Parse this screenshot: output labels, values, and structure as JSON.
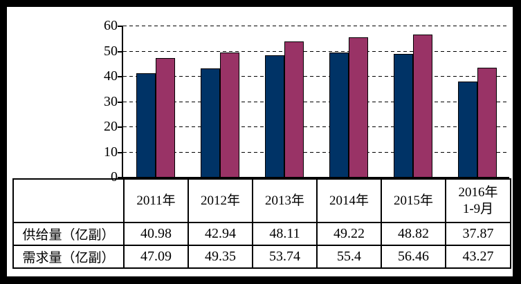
{
  "chart_data": {
    "type": "bar",
    "title": "",
    "xlabel": "",
    "ylabel": "",
    "categories": [
      "2011年",
      "2012年",
      "2013年",
      "2014年",
      "2015年",
      "2016年\n1-9月"
    ],
    "series": [
      {
        "name": "供给量（亿副）",
        "color": "#003366",
        "values": [
          40.98,
          42.94,
          48.11,
          49.22,
          48.82,
          37.87
        ]
      },
      {
        "name": "需求量（亿副）",
        "color": "#993366",
        "values": [
          47.09,
          49.35,
          53.74,
          55.4,
          56.46,
          43.27
        ]
      }
    ],
    "ylim": [
      0,
      60
    ],
    "yticks": [
      0,
      10,
      20,
      30,
      40,
      50,
      60
    ],
    "grid": "horizontal-dashed",
    "legend_position": "none",
    "data_table_shown": true
  },
  "colors": {
    "frame": "#000000",
    "background": "#ffffff",
    "axis": "#000000",
    "gridline": "#000000",
    "series1": "#003366",
    "series2": "#993366",
    "table_border": "#000000",
    "text": "#000000"
  }
}
